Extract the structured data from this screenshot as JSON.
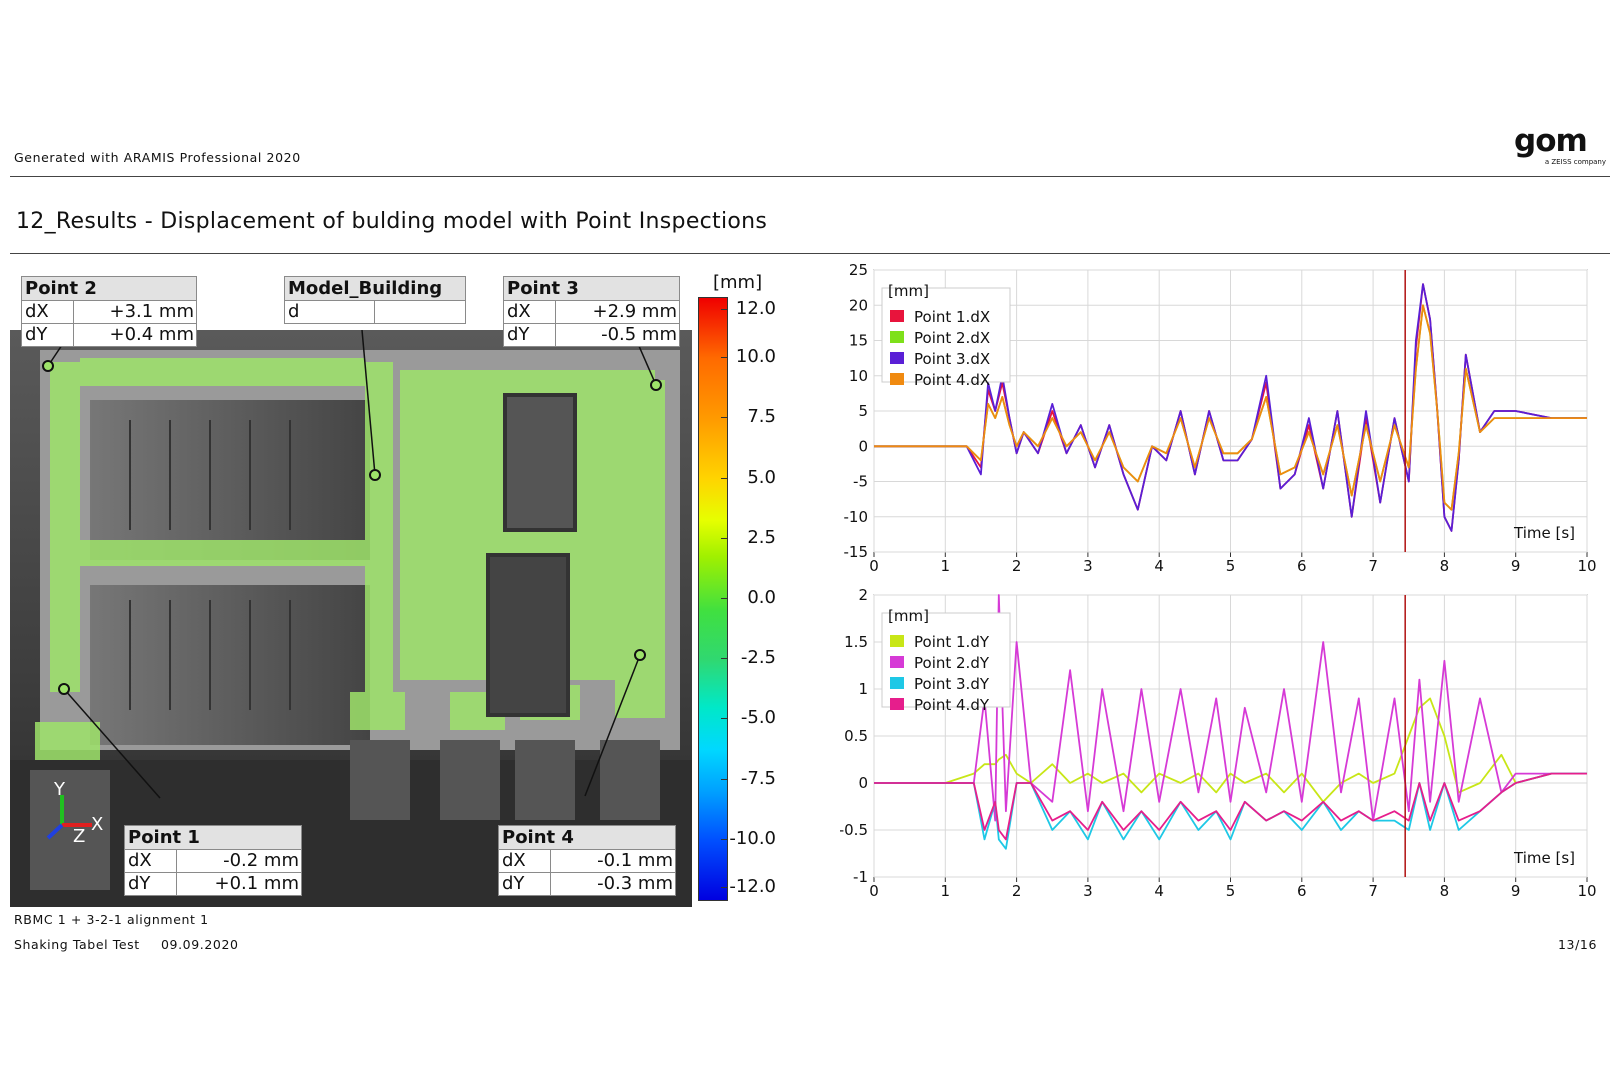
{
  "header": {
    "generated_with": "Generated with ARAMIS Professional 2020",
    "logo_text": "gom",
    "logo_sub": "a ZEISS company"
  },
  "title": "12_Results - Displacement of bulding model with Point Inspections",
  "callouts": {
    "point2": {
      "name": "Point 2",
      "rows": [
        {
          "k": "dX",
          "v": "+3.1 mm"
        },
        {
          "k": "dY",
          "v": "+0.4 mm"
        }
      ]
    },
    "model": {
      "name": "Model_Building",
      "rows": [
        {
          "k": "d",
          "v": ""
        }
      ]
    },
    "point3": {
      "name": "Point 3",
      "rows": [
        {
          "k": "dX",
          "v": "+2.9 mm"
        },
        {
          "k": "dY",
          "v": "-0.5 mm"
        }
      ]
    },
    "point1": {
      "name": "Point 1",
      "rows": [
        {
          "k": "dX",
          "v": "-0.2 mm"
        },
        {
          "k": "dY",
          "v": "+0.1 mm"
        }
      ]
    },
    "point4": {
      "name": "Point 4",
      "rows": [
        {
          "k": "dX",
          "v": "-0.1 mm"
        },
        {
          "k": "dY",
          "v": "-0.3 mm"
        }
      ]
    }
  },
  "axes_labels": {
    "y": "Y",
    "x": "X",
    "z": "Z"
  },
  "color_scale": {
    "unit": "[mm]",
    "ticks": [
      "12.0",
      "10.0",
      "7.5",
      "5.0",
      "2.5",
      "0.0",
      "-2.5",
      "-5.0",
      "-7.5",
      "-10.0",
      "-12.0"
    ]
  },
  "footer": {
    "alignment": "RBMC 1 + 3-2-1 alignment 1",
    "test": "Shaking Tabel Test",
    "date": "09.09.2020",
    "page": "13/16"
  },
  "chart_data": [
    {
      "type": "line",
      "ylabel": "[mm]",
      "xlabel": "Time [s]",
      "xlim": [
        0,
        10
      ],
      "ylim": [
        -15,
        25
      ],
      "x_ticks": [
        "0",
        "1",
        "2",
        "3",
        "4",
        "5",
        "6",
        "7",
        "8",
        "9",
        "10"
      ],
      "y_ticks": [
        "25",
        "20",
        "15",
        "10",
        "5",
        "0",
        "-5",
        "-10",
        "-15"
      ],
      "cursor_x": 7.45,
      "grid": true,
      "legend": "top-left",
      "x": [
        0,
        0.5,
        1,
        1.3,
        1.5,
        1.6,
        1.7,
        1.8,
        1.9,
        2,
        2.1,
        2.3,
        2.5,
        2.7,
        2.9,
        3.1,
        3.3,
        3.5,
        3.7,
        3.9,
        4.1,
        4.3,
        4.5,
        4.7,
        4.9,
        5.1,
        5.3,
        5.5,
        5.7,
        5.9,
        6.1,
        6.3,
        6.5,
        6.7,
        6.9,
        7.1,
        7.3,
        7.5,
        7.6,
        7.7,
        7.8,
        7.9,
        8,
        8.1,
        8.2,
        8.3,
        8.5,
        8.7,
        9,
        9.5,
        10
      ],
      "series": [
        {
          "name": "Point 1.dX",
          "color": "#e8143c",
          "values": [
            0,
            0,
            0,
            0,
            -3,
            8,
            5,
            9,
            4,
            -1,
            2,
            -1,
            5,
            -1,
            3,
            -3,
            3,
            -4,
            -9,
            0,
            -2,
            5,
            -4,
            5,
            -2,
            -2,
            1,
            9,
            -6,
            -4,
            3,
            -6,
            5,
            -10,
            4,
            -8,
            4,
            -5,
            14,
            23,
            18,
            5,
            -10,
            -12,
            -2,
            13,
            2,
            5,
            5,
            4,
            4
          ]
        },
        {
          "name": "Point 2.dX",
          "color": "#7ee01a",
          "values": [
            0,
            0,
            0,
            0,
            -2,
            6,
            4,
            7,
            3,
            0,
            2,
            0,
            4,
            0,
            2,
            -2,
            2,
            -3,
            -5,
            0,
            -1,
            4,
            -3,
            4,
            -1,
            -1,
            1,
            7,
            -4,
            -3,
            2,
            -4,
            3,
            -7,
            3,
            -5,
            3,
            -3,
            11,
            20,
            16,
            5,
            -8,
            -9,
            -1,
            11,
            2,
            4,
            4,
            4,
            4
          ]
        },
        {
          "name": "Point 3.dX",
          "color": "#5a1fd6",
          "values": [
            0,
            0,
            0,
            0,
            -4,
            9,
            5,
            10,
            4,
            -1,
            2,
            -1,
            6,
            -1,
            3,
            -3,
            3,
            -4,
            -9,
            0,
            -2,
            5,
            -4,
            5,
            -2,
            -2,
            1,
            10,
            -6,
            -4,
            4,
            -6,
            5,
            -10,
            5,
            -8,
            4,
            -5,
            15,
            23,
            18,
            5,
            -10,
            -12,
            -2,
            13,
            2,
            5,
            5,
            4,
            4
          ]
        },
        {
          "name": "Point 4.dX",
          "color": "#f08a10",
          "values": [
            0,
            0,
            0,
            0,
            -2,
            6,
            4,
            7,
            3,
            0,
            2,
            0,
            4,
            0,
            2,
            -2,
            2,
            -3,
            -5,
            0,
            -1,
            4,
            -3,
            4,
            -1,
            -1,
            1,
            7,
            -4,
            -3,
            2,
            -4,
            3,
            -7,
            3,
            -5,
            3,
            -3,
            11,
            20,
            16,
            5,
            -8,
            -9,
            -1,
            11,
            2,
            4,
            4,
            4,
            4
          ]
        }
      ]
    },
    {
      "type": "line",
      "ylabel": "[mm]",
      "xlabel": "Time [s]",
      "xlim": [
        0,
        10
      ],
      "ylim": [
        -1,
        2
      ],
      "x_ticks": [
        "0",
        "1",
        "2",
        "3",
        "4",
        "5",
        "6",
        "7",
        "8",
        "9",
        "10"
      ],
      "y_ticks": [
        "2",
        "1.5",
        "1",
        "0.5",
        "0",
        "-0.5",
        "-1"
      ],
      "cursor_x": 7.45,
      "grid": true,
      "legend": "top-left",
      "x": [
        0,
        0.5,
        1,
        1.4,
        1.55,
        1.7,
        1.75,
        1.85,
        2,
        2.2,
        2.5,
        2.75,
        3,
        3.2,
        3.5,
        3.75,
        4,
        4.3,
        4.55,
        4.8,
        5,
        5.2,
        5.5,
        5.75,
        6,
        6.3,
        6.55,
        6.8,
        7,
        7.3,
        7.5,
        7.65,
        7.8,
        8,
        8.2,
        8.5,
        8.8,
        9,
        9.5,
        10
      ],
      "series": [
        {
          "name": "Point 1.dY",
          "color": "#c8e617",
          "values": [
            0,
            0,
            0,
            0.1,
            0.2,
            0.2,
            0.25,
            0.3,
            0.1,
            0,
            0.2,
            0,
            0.1,
            0,
            0.1,
            -0.1,
            0.1,
            0,
            0.1,
            -0.1,
            0.1,
            0,
            0.1,
            -0.1,
            0.1,
            -0.2,
            0,
            0.1,
            0,
            0.1,
            0.5,
            0.8,
            0.9,
            0.5,
            -0.1,
            0,
            0.3,
            0,
            0.1,
            0.1
          ]
        },
        {
          "name": "Point 2.dY",
          "color": "#d63ad6",
          "values": [
            0,
            0,
            0,
            0,
            0.9,
            -0.4,
            2,
            -0.3,
            1.5,
            0,
            -0.2,
            1.2,
            -0.3,
            1,
            -0.3,
            1,
            -0.2,
            1,
            -0.1,
            0.9,
            -0.2,
            0.8,
            -0.1,
            1,
            -0.2,
            1.5,
            -0.1,
            0.9,
            -0.4,
            0.9,
            -0.3,
            1.1,
            -0.2,
            1.3,
            -0.2,
            0.9,
            -0.1,
            0.1,
            0.1,
            0.1
          ]
        },
        {
          "name": "Point 3.dY",
          "color": "#1ec8e6",
          "values": [
            0,
            0,
            0,
            0,
            -0.6,
            -0.2,
            -0.6,
            -0.7,
            0,
            0,
            -0.5,
            -0.3,
            -0.6,
            -0.2,
            -0.6,
            -0.3,
            -0.6,
            -0.2,
            -0.5,
            -0.3,
            -0.6,
            -0.2,
            -0.4,
            -0.3,
            -0.5,
            -0.2,
            -0.5,
            -0.3,
            -0.4,
            -0.4,
            -0.5,
            0,
            -0.5,
            0,
            -0.5,
            -0.3,
            -0.1,
            0,
            0.1,
            0.1
          ]
        },
        {
          "name": "Point 4.dY",
          "color": "#e61e8c",
          "values": [
            0,
            0,
            0,
            0,
            -0.5,
            -0.2,
            -0.5,
            -0.6,
            0,
            0,
            -0.4,
            -0.3,
            -0.5,
            -0.2,
            -0.5,
            -0.3,
            -0.5,
            -0.2,
            -0.4,
            -0.3,
            -0.5,
            -0.2,
            -0.4,
            -0.3,
            -0.4,
            -0.2,
            -0.4,
            -0.3,
            -0.4,
            -0.3,
            -0.4,
            0,
            -0.4,
            0,
            -0.4,
            -0.3,
            -0.1,
            0,
            0.1,
            0.1
          ]
        }
      ]
    }
  ]
}
